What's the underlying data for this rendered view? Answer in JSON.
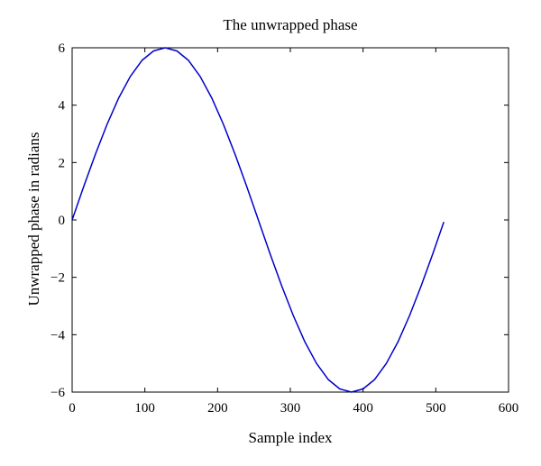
{
  "chart_data": {
    "type": "line",
    "title": "The unwrapped phase",
    "xlabel": "Sample index",
    "ylabel": "Unwrapped phase in radians",
    "xlim": [
      0,
      600
    ],
    "ylim": [
      -6,
      6
    ],
    "x_ticks": [
      "0",
      "100",
      "200",
      "300",
      "400",
      "500",
      "600"
    ],
    "y_ticks": [
      "6",
      "4",
      "2",
      "0",
      "−2",
      "−4",
      "−6"
    ],
    "grid": false,
    "legend": "none",
    "series": [
      {
        "color": "#0000cc",
        "x": [
          0,
          16,
          32,
          48,
          64,
          80,
          96,
          112,
          128,
          144,
          160,
          176,
          192,
          208,
          224,
          240,
          256,
          272,
          288,
          304,
          320,
          336,
          352,
          368,
          384,
          400,
          416,
          432,
          448,
          464,
          480,
          496,
          511
        ],
        "values": [
          0.0,
          1.17,
          2.29,
          3.33,
          4.25,
          5.0,
          5.56,
          5.89,
          6.0,
          5.89,
          5.56,
          5.0,
          4.25,
          3.33,
          2.29,
          1.17,
          0.0,
          -1.17,
          -2.29,
          -3.33,
          -4.25,
          -5.0,
          -5.56,
          -5.89,
          -6.0,
          -5.89,
          -5.56,
          -5.0,
          -4.25,
          -3.33,
          -2.29,
          -1.17,
          -0.07
        ]
      }
    ]
  }
}
